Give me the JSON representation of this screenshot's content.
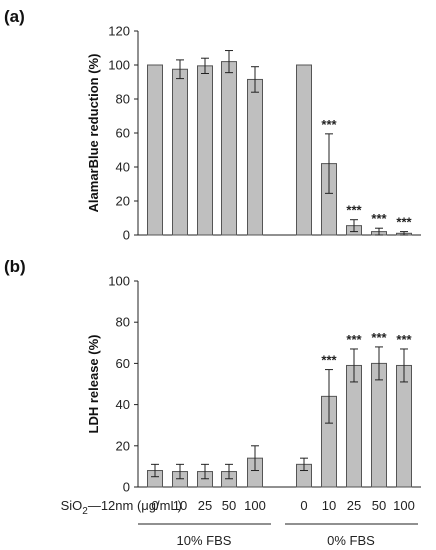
{
  "x_title_prefix": "SiO",
  "x_title_sub": "2",
  "x_title_suffix": "—12nm (μg/mL)",
  "group_labels": [
    "10% FBS",
    "0% FBS"
  ],
  "chart_data": [
    {
      "type": "bar",
      "panel_label": "(a)",
      "ylabel": "AlamarBlue reduction (%)",
      "ylim": [
        0,
        120
      ],
      "yticks": [
        0,
        20,
        40,
        60,
        80,
        100,
        120
      ],
      "categories": [
        "0",
        "10",
        "25",
        "50",
        "100",
        "0",
        "10",
        "25",
        "50",
        "100"
      ],
      "groups": [
        "10% FBS",
        "10% FBS",
        "10% FBS",
        "10% FBS",
        "10% FBS",
        "0% FBS",
        "0% FBS",
        "0% FBS",
        "0% FBS",
        "0% FBS"
      ],
      "values": [
        100,
        97.5,
        99.5,
        102,
        91.5,
        100,
        42,
        5.5,
        2,
        1
      ],
      "errors": [
        0,
        5.5,
        4.5,
        6.5,
        7.5,
        0,
        17.5,
        3.5,
        2,
        1
      ],
      "annotations": [
        "",
        "",
        "",
        "",
        "",
        "",
        "***",
        "***",
        "***",
        "***"
      ],
      "grid": false,
      "show_x_ticklabels": false
    },
    {
      "type": "bar",
      "panel_label": "(b)",
      "ylabel": "LDH release (%)",
      "ylim": [
        0,
        100
      ],
      "yticks": [
        0,
        20,
        40,
        60,
        80,
        100
      ],
      "categories": [
        "0",
        "10",
        "25",
        "50",
        "100",
        "0",
        "10",
        "25",
        "50",
        "100"
      ],
      "groups": [
        "10% FBS",
        "10% FBS",
        "10% FBS",
        "10% FBS",
        "10% FBS",
        "0% FBS",
        "0% FBS",
        "0% FBS",
        "0% FBS",
        "0% FBS"
      ],
      "values": [
        8,
        7.5,
        7.5,
        7.5,
        14,
        11,
        44,
        59,
        60,
        59
      ],
      "errors": [
        3,
        3.5,
        3.5,
        3.5,
        6,
        3,
        13,
        8,
        8,
        8
      ],
      "annotations": [
        "",
        "",
        "",
        "",
        "",
        "",
        "***",
        "***",
        "***",
        "***"
      ],
      "grid": false,
      "show_x_ticklabels": true
    }
  ]
}
